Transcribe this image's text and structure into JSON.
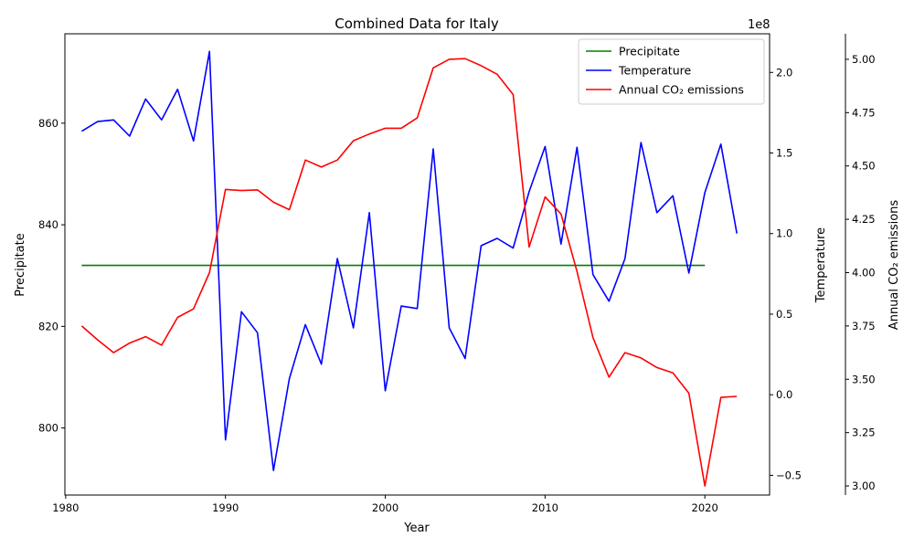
{
  "chart_data": {
    "type": "line",
    "title": "Combined Data for Italy",
    "xlabel": "Year",
    "xlim": [
      1979.95,
      2024.05
    ],
    "x_ticks": [
      1980,
      1990,
      2000,
      2010,
      2020
    ],
    "axes": {
      "precipitate": {
        "label": "Precipitate",
        "color": "#008000",
        "ylim": [
          786.8,
          877.6
        ],
        "ticks": [
          800,
          820,
          840,
          860
        ],
        "tick_labels": [
          "800",
          "820",
          "840",
          "860"
        ]
      },
      "temperature": {
        "label": "Temperature",
        "color": "#0000ff",
        "offset_text": "1e8",
        "ylim": [
          -0.6223,
          2.2396
        ],
        "ticks": [
          -0.5,
          0.0,
          0.5,
          1.0,
          1.5,
          2.0
        ],
        "tick_labels": [
          "−0.5",
          "0.0",
          "0.5",
          "1.0",
          "1.5",
          "2.0"
        ]
      },
      "co2": {
        "label": "Annual CO₂ emissions",
        "color": "#ff0000",
        "ylim": [
          2.9575,
          5.1195
        ],
        "ticks": [
          3.0,
          3.25,
          3.5,
          3.75,
          4.0,
          4.25,
          4.5,
          4.75,
          5.0
        ],
        "tick_labels": [
          "3.00",
          "3.25",
          "3.50",
          "3.75",
          "4.00",
          "4.25",
          "4.50",
          "4.75",
          "5.00"
        ]
      }
    },
    "series": [
      {
        "name": "Precipitate",
        "axis": "precipitate",
        "color": "#008000",
        "x": [
          1981,
          2020
        ],
        "values": [
          832,
          832
        ]
      },
      {
        "name": "Temperature",
        "axis": "temperature",
        "color": "#0000ff",
        "x": [
          1981,
          1982,
          1983,
          1984,
          1985,
          1986,
          1987,
          1988,
          1989,
          1990,
          1991,
          1992,
          1993,
          1994,
          1995,
          1996,
          1997,
          1998,
          1999,
          2000,
          2001,
          2002,
          2003,
          2004,
          2005,
          2006,
          2007,
          2008,
          2009,
          2010,
          2011,
          2012,
          2013,
          2014,
          2015,
          2016,
          2017,
          2018,
          2019,
          2020,
          2021,
          2022
        ],
        "values": [
          1.635,
          1.695,
          1.705,
          1.605,
          1.835,
          1.705,
          1.895,
          1.575,
          2.13,
          -0.28,
          0.515,
          0.385,
          -0.47,
          0.1,
          0.435,
          0.19,
          0.845,
          0.415,
          1.13,
          0.025,
          0.55,
          0.535,
          1.525,
          0.415,
          0.225,
          0.925,
          0.97,
          0.91,
          1.26,
          1.54,
          0.935,
          1.535,
          0.745,
          0.58,
          0.845,
          1.565,
          1.13,
          1.235,
          0.755,
          1.255,
          1.555,
          1.0
        ]
      },
      {
        "name": "Annual CO₂ emissions",
        "axis": "co2",
        "color": "#ff0000",
        "x": [
          1981,
          1982,
          1983,
          1984,
          1985,
          1986,
          1987,
          1988,
          1989,
          1990,
          1991,
          1992,
          1993,
          1994,
          1995,
          1996,
          1997,
          1998,
          1999,
          2000,
          2001,
          2002,
          2003,
          2004,
          2005,
          2006,
          2007,
          2008,
          2009,
          2010,
          2011,
          2012,
          2013,
          2014,
          2015,
          2016,
          2017,
          2018,
          2019,
          2020,
          2021,
          2022
        ],
        "values": [
          3.75,
          3.685,
          3.625,
          3.67,
          3.7,
          3.66,
          3.79,
          3.83,
          4.0,
          4.39,
          4.385,
          4.388,
          4.33,
          4.295,
          4.528,
          4.495,
          4.528,
          4.618,
          4.65,
          4.677,
          4.677,
          4.725,
          4.96,
          5.0,
          5.003,
          4.97,
          4.93,
          4.835,
          4.12,
          4.355,
          4.275,
          4.005,
          3.695,
          3.51,
          3.625,
          3.6,
          3.555,
          3.53,
          3.435,
          3.0,
          3.415,
          3.42
        ]
      }
    ],
    "legend": {
      "placement": "top-right",
      "entries": [
        "Precipitate",
        "Temperature",
        "Annual CO₂ emissions"
      ]
    },
    "grid": false
  }
}
